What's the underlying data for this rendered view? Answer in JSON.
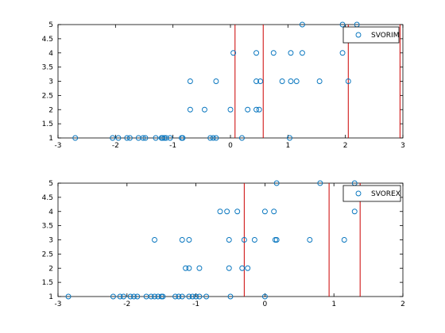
{
  "chart_data": [
    {
      "type": "scatter",
      "title": "",
      "xlabel": "",
      "ylabel": "",
      "xlim": [
        -3,
        3
      ],
      "ylim": [
        1,
        5
      ],
      "xticks": [
        -3,
        -2,
        -1,
        0,
        1,
        2,
        3
      ],
      "yticks": [
        1,
        1.5,
        2,
        2.5,
        3,
        3.5,
        4,
        4.5,
        5
      ],
      "xtick_labels": [
        "-3",
        "-2",
        "-1",
        "0",
        "1",
        "2",
        "3"
      ],
      "ytick_labels": [
        "1",
        "1.5",
        "2",
        "2.5",
        "3",
        "3.5",
        "4",
        "4.5",
        "5"
      ],
      "grid": false,
      "legend_position": "top-right",
      "marker_color": "#0072bd",
      "vline_color": "#cc0000",
      "series": [
        {
          "name": "SVORIM",
          "points": [
            [
              -2.7,
              1
            ],
            [
              -2.05,
              1
            ],
            [
              -1.95,
              1
            ],
            [
              -1.8,
              1
            ],
            [
              -1.75,
              1
            ],
            [
              -1.6,
              1
            ],
            [
              -1.52,
              1
            ],
            [
              -1.48,
              1
            ],
            [
              -1.3,
              1
            ],
            [
              -1.2,
              1
            ],
            [
              -1.18,
              1
            ],
            [
              -1.15,
              1
            ],
            [
              -1.12,
              1
            ],
            [
              -1.05,
              1
            ],
            [
              -0.85,
              1
            ],
            [
              -0.83,
              1
            ],
            [
              -0.35,
              1
            ],
            [
              -0.3,
              1
            ],
            [
              -0.25,
              1
            ],
            [
              0.2,
              1
            ],
            [
              1.03,
              1
            ],
            [
              -0.7,
              2
            ],
            [
              -0.45,
              2
            ],
            [
              0.0,
              2
            ],
            [
              0.3,
              2
            ],
            [
              0.45,
              2
            ],
            [
              0.5,
              2
            ],
            [
              -0.7,
              3
            ],
            [
              -0.25,
              3
            ],
            [
              0.45,
              3
            ],
            [
              0.52,
              3
            ],
            [
              0.9,
              3
            ],
            [
              1.05,
              3
            ],
            [
              1.15,
              3
            ],
            [
              1.55,
              3
            ],
            [
              2.05,
              3
            ],
            [
              0.05,
              4
            ],
            [
              0.45,
              4
            ],
            [
              0.75,
              4
            ],
            [
              1.05,
              4
            ],
            [
              1.25,
              4
            ],
            [
              1.95,
              4
            ],
            [
              1.25,
              5
            ],
            [
              1.95,
              5
            ],
            [
              2.2,
              5
            ]
          ],
          "thresholds": [
            0.08,
            0.57,
            2.05,
            2.95
          ]
        }
      ]
    },
    {
      "type": "scatter",
      "title": "",
      "xlabel": "",
      "ylabel": "",
      "xlim": [
        -3,
        2
      ],
      "ylim": [
        1,
        5
      ],
      "xticks": [
        -3,
        -2,
        -1,
        0,
        1,
        2
      ],
      "yticks": [
        1,
        1.5,
        2,
        2.5,
        3,
        3.5,
        4,
        4.5,
        5
      ],
      "xtick_labels": [
        "-3",
        "-2",
        "-1",
        "0",
        "1",
        "2"
      ],
      "ytick_labels": [
        "1",
        "1.5",
        "2",
        "2.5",
        "3",
        "3.5",
        "4",
        "4.5",
        "5"
      ],
      "grid": false,
      "legend_position": "top-right",
      "marker_color": "#0072bd",
      "vline_color": "#cc0000",
      "series": [
        {
          "name": "SVOREX",
          "points": [
            [
              -2.85,
              1
            ],
            [
              -2.2,
              1
            ],
            [
              -2.1,
              1
            ],
            [
              -2.05,
              1
            ],
            [
              -1.95,
              1
            ],
            [
              -1.9,
              1
            ],
            [
              -1.85,
              1
            ],
            [
              -1.72,
              1
            ],
            [
              -1.65,
              1
            ],
            [
              -1.6,
              1
            ],
            [
              -1.55,
              1
            ],
            [
              -1.5,
              1
            ],
            [
              -1.48,
              1
            ],
            [
              -1.3,
              1
            ],
            [
              -1.25,
              1
            ],
            [
              -1.2,
              1
            ],
            [
              -1.1,
              1
            ],
            [
              -1.05,
              1
            ],
            [
              -1.0,
              1
            ],
            [
              -0.95,
              1
            ],
            [
              -0.85,
              1
            ],
            [
              -0.5,
              1
            ],
            [
              0.0,
              1
            ],
            [
              -1.15,
              2
            ],
            [
              -1.1,
              2
            ],
            [
              -0.95,
              2
            ],
            [
              -0.52,
              2
            ],
            [
              -0.33,
              2
            ],
            [
              -0.25,
              2
            ],
            [
              -1.6,
              3
            ],
            [
              -1.2,
              3
            ],
            [
              -1.1,
              3
            ],
            [
              -0.52,
              3
            ],
            [
              -0.3,
              3
            ],
            [
              -0.15,
              3
            ],
            [
              0.15,
              3
            ],
            [
              0.17,
              3
            ],
            [
              0.65,
              3
            ],
            [
              1.15,
              3
            ],
            [
              -0.65,
              4
            ],
            [
              -0.55,
              4
            ],
            [
              -0.4,
              4
            ],
            [
              0.0,
              4
            ],
            [
              0.13,
              4
            ],
            [
              1.3,
              4
            ],
            [
              0.17,
              5
            ],
            [
              0.8,
              5
            ],
            [
              1.3,
              5
            ]
          ],
          "thresholds": [
            -0.3,
            0.93,
            1.38
          ]
        }
      ]
    }
  ]
}
